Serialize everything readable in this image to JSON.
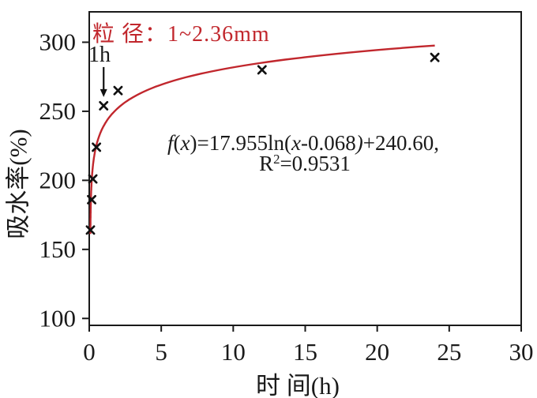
{
  "chart_data": {
    "type": "scatter",
    "title_annotation": "粒 径：1~2.36mm",
    "xlabel": "时 间(h)",
    "ylabel": "吸水率(%)",
    "xlim": [
      0,
      30
    ],
    "ylim": [
      95,
      322
    ],
    "x_ticks": [
      0,
      5,
      10,
      15,
      20,
      25,
      30
    ],
    "y_ticks": [
      100,
      150,
      200,
      250,
      300
    ],
    "grid": false,
    "legend": false,
    "points": {
      "x": [
        0.083,
        0.167,
        0.25,
        0.5,
        1,
        2,
        12,
        24
      ],
      "y": [
        164,
        186,
        201,
        224,
        254,
        265,
        280,
        289
      ]
    },
    "fit_curve": {
      "model": "f(x) = a*ln(x - x0) + b",
      "a": 17.955,
      "x0": 0.068,
      "b": 240.6,
      "x_range": [
        0.08,
        24
      ],
      "label": "f(x)=17.955ln(x-0.068)+240.60,",
      "r_squared": 0.9531,
      "r_squared_label": "R²=0.9531"
    },
    "point_annotation": {
      "label": "1h",
      "points_to": {
        "x": 1,
        "y": 254
      }
    },
    "colors": {
      "curve": "#c1272d",
      "annotation_text": "#c1272d",
      "marker": "#111111",
      "axis": "#1a1a1a"
    }
  },
  "equation_segments": {
    "line1": [
      {
        "text": "f",
        "italic": true
      },
      {
        "text": "(",
        "italic": false
      },
      {
        "text": "x",
        "italic": true
      },
      {
        "text": ")=17.955ln(",
        "italic": false
      },
      {
        "text": "x",
        "italic": true
      },
      {
        "text": "-0.068",
        "italic": false
      },
      {
        "text": ")",
        "italic": true
      },
      {
        "text": "+240.60,",
        "italic": false
      }
    ],
    "line2": [
      {
        "text": "R"
      },
      {
        "text": "2",
        "sup": true
      },
      {
        "text": "=0.9531"
      }
    ]
  }
}
